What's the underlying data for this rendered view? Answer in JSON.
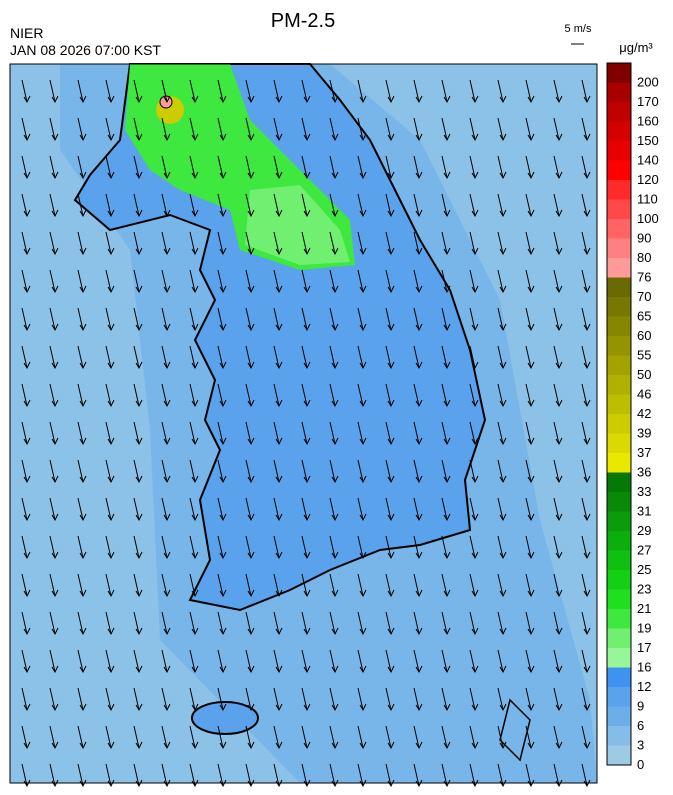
{
  "header": {
    "title": "PM-2.5",
    "agency": "NIER",
    "time": "JAN 08 2026 07:00 KST",
    "wind_scale": "5 m/s"
  },
  "colorbar": {
    "unit": "μg/m³",
    "levels": [
      0,
      3,
      6,
      9,
      12,
      16,
      17,
      19,
      21,
      23,
      25,
      27,
      29,
      31,
      33,
      36,
      37,
      39,
      42,
      46,
      50,
      55,
      60,
      65,
      70,
      76,
      80,
      90,
      100,
      110,
      120,
      140,
      150,
      160,
      170,
      200
    ],
    "colors": [
      "#9ccbe6",
      "#86bde8",
      "#6aaeea",
      "#5aa2ec",
      "#3f92f0",
      "#98f598",
      "#70ef70",
      "#3ee83e",
      "#1ee01e",
      "#14d014",
      "#10c010",
      "#0cae0c",
      "#0a9c0a",
      "#088a08",
      "#067806",
      "#e8e800",
      "#dada00",
      "#cccc00",
      "#bebe00",
      "#b0b000",
      "#a2a200",
      "#949400",
      "#868600",
      "#787800",
      "#6a6a00",
      "#ff9a9a",
      "#ff8080",
      "#ff6464",
      "#ff4848",
      "#ff2a2a",
      "#ff0000",
      "#e80000",
      "#d40000",
      "#c00000",
      "#a80000",
      "#800000"
    ]
  }
}
